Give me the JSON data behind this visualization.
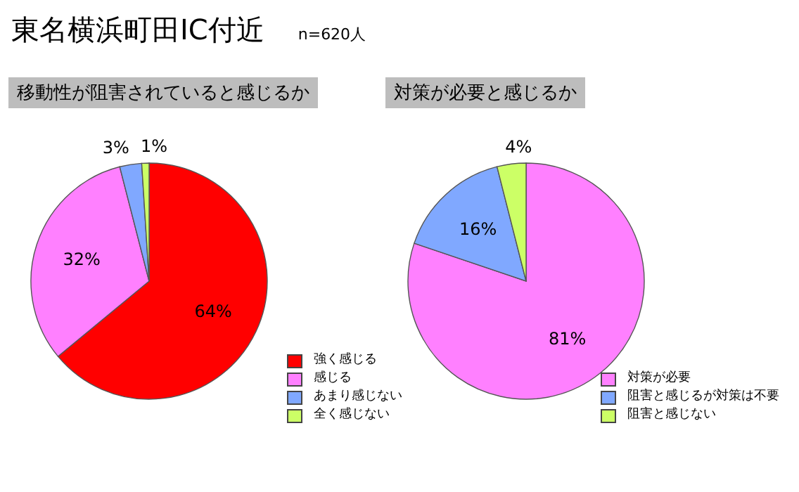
{
  "chart_data": [
    {
      "type": "pie",
      "title": "移動性が阻害されていると感じるか",
      "annotations": [
        "東名横浜町田IC付近",
        "n=620人"
      ],
      "categories": [
        "強く感じる",
        "感じる",
        "あまり感じない",
        "全く感じない"
      ],
      "values": [
        64,
        32,
        3,
        1
      ],
      "value_labels": [
        "64%",
        "32%",
        "3%",
        "1%"
      ],
      "colors": [
        "#ff0000",
        "#ff80ff",
        "#80a8ff",
        "#ccff66"
      ],
      "legend": "bottom right"
    },
    {
      "type": "pie",
      "title": "対策が必要と感じるか",
      "categories": [
        "対策が必要",
        "阻害と感じるが対策は不要",
        "阻害と感じない"
      ],
      "values": [
        81,
        16,
        4
      ],
      "value_labels": [
        "81%",
        "16%",
        "4%"
      ],
      "colors": [
        "#ff80ff",
        "#80a8ff",
        "#ccff66"
      ],
      "legend": "bottom right"
    }
  ]
}
